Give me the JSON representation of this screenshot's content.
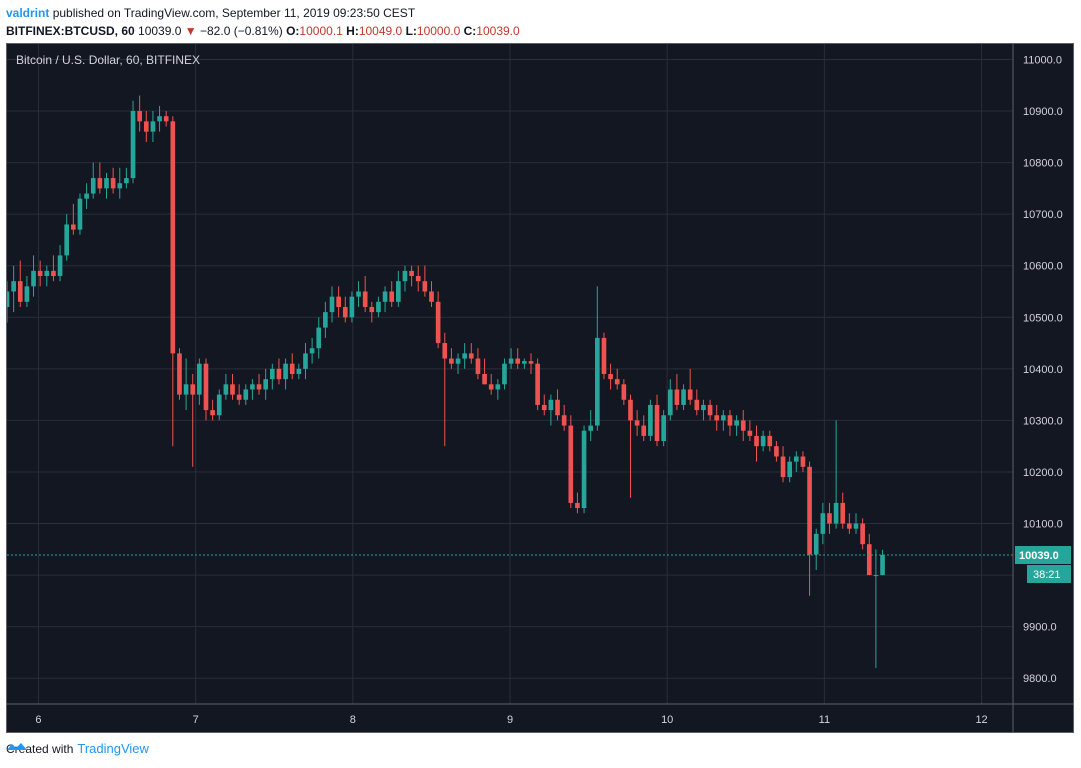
{
  "header": {
    "author": "valdrint",
    "published_text": "published on TradingView.com, September 11, 2019 09:23:50 CEST",
    "symbol": "BITFINEX:BTCUSD, 60",
    "last_price": "10039.0",
    "change_arrow": "▼",
    "change": "−82.0 (−0.81%)",
    "o_label": "O:",
    "o_val": "10000.1",
    "h_label": "H:",
    "h_val": "10049.0",
    "l_label": "L:",
    "l_val": "10000.0",
    "c_label": "C:",
    "c_val": "10039.0"
  },
  "footer": {
    "created_with": "Created with",
    "brand": "TradingView"
  },
  "colors": {
    "up": "#26a69a",
    "down": "#ef5350",
    "bg": "#131722",
    "grid": "#2a2e39",
    "axis_text": "#d1d4dc",
    "price_line": "#26a69a"
  },
  "chart_data": {
    "type": "candlestick",
    "title": "Bitcoin / U.S. Dollar, 60, BITFINEX",
    "ylim": [
      9750,
      11030
    ],
    "xlim": [
      5.8,
      12.2
    ],
    "y_ticks": [
      11000,
      10900,
      10800,
      10700,
      10600,
      10500,
      10400,
      10300,
      10200,
      10100,
      10000,
      9900,
      9800
    ],
    "y_tick_labels": [
      "11000.0",
      "10900.0",
      "10800.0",
      "10700.0",
      "10600.0",
      "10500.0",
      "10400.0",
      "",
      "10200.0",
      "10100.0",
      "",
      "9900.0",
      "9800.0"
    ],
    "x_ticks": [
      6,
      7,
      8,
      9,
      10,
      11,
      12
    ],
    "x_tick_labels": [
      "6",
      "7",
      "8",
      "9",
      "10",
      "11",
      "12"
    ],
    "extra_y_label": {
      "value": 10300,
      "text": "10300.0"
    },
    "current_price": 10039.0,
    "current_price_label": "10039.0",
    "countdown_label": "38:21",
    "candles": [
      {
        "o": 10520,
        "h": 10570,
        "l": 10490,
        "c": 10550
      },
      {
        "o": 10550,
        "h": 10600,
        "l": 10510,
        "c": 10570
      },
      {
        "o": 10570,
        "h": 10610,
        "l": 10520,
        "c": 10530
      },
      {
        "o": 10530,
        "h": 10580,
        "l": 10520,
        "c": 10560
      },
      {
        "o": 10560,
        "h": 10620,
        "l": 10540,
        "c": 10590
      },
      {
        "o": 10590,
        "h": 10610,
        "l": 10560,
        "c": 10580
      },
      {
        "o": 10580,
        "h": 10600,
        "l": 10560,
        "c": 10590
      },
      {
        "o": 10590,
        "h": 10620,
        "l": 10570,
        "c": 10580
      },
      {
        "o": 10580,
        "h": 10640,
        "l": 10570,
        "c": 10620
      },
      {
        "o": 10620,
        "h": 10700,
        "l": 10610,
        "c": 10680
      },
      {
        "o": 10680,
        "h": 10720,
        "l": 10660,
        "c": 10670
      },
      {
        "o": 10670,
        "h": 10740,
        "l": 10660,
        "c": 10730
      },
      {
        "o": 10730,
        "h": 10760,
        "l": 10710,
        "c": 10740
      },
      {
        "o": 10740,
        "h": 10800,
        "l": 10730,
        "c": 10770
      },
      {
        "o": 10770,
        "h": 10800,
        "l": 10740,
        "c": 10750
      },
      {
        "o": 10750,
        "h": 10780,
        "l": 10730,
        "c": 10770
      },
      {
        "o": 10770,
        "h": 10790,
        "l": 10740,
        "c": 10750
      },
      {
        "o": 10750,
        "h": 10790,
        "l": 10730,
        "c": 10760
      },
      {
        "o": 10760,
        "h": 10790,
        "l": 10750,
        "c": 10770
      },
      {
        "o": 10770,
        "h": 10920,
        "l": 10760,
        "c": 10900
      },
      {
        "o": 10900,
        "h": 10930,
        "l": 10860,
        "c": 10880
      },
      {
        "o": 10880,
        "h": 10900,
        "l": 10840,
        "c": 10860
      },
      {
        "o": 10860,
        "h": 10900,
        "l": 10840,
        "c": 10880
      },
      {
        "o": 10880,
        "h": 10910,
        "l": 10860,
        "c": 10890
      },
      {
        "o": 10890,
        "h": 10900,
        "l": 10870,
        "c": 10880
      },
      {
        "o": 10880,
        "h": 10890,
        "l": 10250,
        "c": 10430
      },
      {
        "o": 10430,
        "h": 10440,
        "l": 10340,
        "c": 10350
      },
      {
        "o": 10350,
        "h": 10420,
        "l": 10320,
        "c": 10370
      },
      {
        "o": 10370,
        "h": 10390,
        "l": 10210,
        "c": 10350
      },
      {
        "o": 10350,
        "h": 10420,
        "l": 10330,
        "c": 10410
      },
      {
        "o": 10410,
        "h": 10420,
        "l": 10300,
        "c": 10320
      },
      {
        "o": 10320,
        "h": 10340,
        "l": 10300,
        "c": 10310
      },
      {
        "o": 10310,
        "h": 10360,
        "l": 10300,
        "c": 10350
      },
      {
        "o": 10350,
        "h": 10390,
        "l": 10340,
        "c": 10370
      },
      {
        "o": 10370,
        "h": 10390,
        "l": 10340,
        "c": 10350
      },
      {
        "o": 10350,
        "h": 10370,
        "l": 10330,
        "c": 10340
      },
      {
        "o": 10340,
        "h": 10370,
        "l": 10330,
        "c": 10360
      },
      {
        "o": 10360,
        "h": 10380,
        "l": 10340,
        "c": 10370
      },
      {
        "o": 10370,
        "h": 10390,
        "l": 10350,
        "c": 10360
      },
      {
        "o": 10360,
        "h": 10400,
        "l": 10340,
        "c": 10380
      },
      {
        "o": 10380,
        "h": 10410,
        "l": 10360,
        "c": 10400
      },
      {
        "o": 10400,
        "h": 10420,
        "l": 10370,
        "c": 10380
      },
      {
        "o": 10380,
        "h": 10420,
        "l": 10360,
        "c": 10410
      },
      {
        "o": 10410,
        "h": 10430,
        "l": 10380,
        "c": 10390
      },
      {
        "o": 10390,
        "h": 10410,
        "l": 10380,
        "c": 10400
      },
      {
        "o": 10400,
        "h": 10450,
        "l": 10380,
        "c": 10430
      },
      {
        "o": 10430,
        "h": 10460,
        "l": 10410,
        "c": 10440
      },
      {
        "o": 10440,
        "h": 10500,
        "l": 10420,
        "c": 10480
      },
      {
        "o": 10480,
        "h": 10530,
        "l": 10460,
        "c": 10510
      },
      {
        "o": 10510,
        "h": 10560,
        "l": 10490,
        "c": 10540
      },
      {
        "o": 10540,
        "h": 10560,
        "l": 10500,
        "c": 10520
      },
      {
        "o": 10520,
        "h": 10540,
        "l": 10490,
        "c": 10500
      },
      {
        "o": 10500,
        "h": 10550,
        "l": 10490,
        "c": 10540
      },
      {
        "o": 10540,
        "h": 10570,
        "l": 10520,
        "c": 10550
      },
      {
        "o": 10550,
        "h": 10580,
        "l": 10510,
        "c": 10520
      },
      {
        "o": 10520,
        "h": 10530,
        "l": 10490,
        "c": 10510
      },
      {
        "o": 10510,
        "h": 10540,
        "l": 10500,
        "c": 10530
      },
      {
        "o": 10530,
        "h": 10560,
        "l": 10510,
        "c": 10550
      },
      {
        "o": 10550,
        "h": 10570,
        "l": 10520,
        "c": 10530
      },
      {
        "o": 10530,
        "h": 10590,
        "l": 10520,
        "c": 10570
      },
      {
        "o": 10570,
        "h": 10600,
        "l": 10550,
        "c": 10590
      },
      {
        "o": 10590,
        "h": 10600,
        "l": 10560,
        "c": 10580
      },
      {
        "o": 10580,
        "h": 10600,
        "l": 10550,
        "c": 10570
      },
      {
        "o": 10570,
        "h": 10600,
        "l": 10540,
        "c": 10550
      },
      {
        "o": 10550,
        "h": 10570,
        "l": 10520,
        "c": 10530
      },
      {
        "o": 10530,
        "h": 10550,
        "l": 10440,
        "c": 10450
      },
      {
        "o": 10450,
        "h": 10470,
        "l": 10250,
        "c": 10420
      },
      {
        "o": 10420,
        "h": 10440,
        "l": 10400,
        "c": 10410
      },
      {
        "o": 10410,
        "h": 10430,
        "l": 10390,
        "c": 10420
      },
      {
        "o": 10420,
        "h": 10450,
        "l": 10400,
        "c": 10430
      },
      {
        "o": 10430,
        "h": 10450,
        "l": 10410,
        "c": 10420
      },
      {
        "o": 10420,
        "h": 10440,
        "l": 10380,
        "c": 10390
      },
      {
        "o": 10390,
        "h": 10420,
        "l": 10370,
        "c": 10370
      },
      {
        "o": 10370,
        "h": 10390,
        "l": 10350,
        "c": 10360
      },
      {
        "o": 10360,
        "h": 10380,
        "l": 10340,
        "c": 10370
      },
      {
        "o": 10370,
        "h": 10420,
        "l": 10360,
        "c": 10410
      },
      {
        "o": 10410,
        "h": 10440,
        "l": 10400,
        "c": 10420
      },
      {
        "o": 10420,
        "h": 10440,
        "l": 10400,
        "c": 10410
      },
      {
        "o": 10410,
        "h": 10420,
        "l": 10400,
        "c": 10415
      },
      {
        "o": 10415,
        "h": 10430,
        "l": 10390,
        "c": 10410
      },
      {
        "o": 10410,
        "h": 10420,
        "l": 10320,
        "c": 10330
      },
      {
        "o": 10330,
        "h": 10350,
        "l": 10310,
        "c": 10320
      },
      {
        "o": 10320,
        "h": 10350,
        "l": 10290,
        "c": 10340
      },
      {
        "o": 10340,
        "h": 10360,
        "l": 10300,
        "c": 10310
      },
      {
        "o": 10310,
        "h": 10330,
        "l": 10280,
        "c": 10290
      },
      {
        "o": 10290,
        "h": 10310,
        "l": 10130,
        "c": 10140
      },
      {
        "o": 10140,
        "h": 10160,
        "l": 10120,
        "c": 10130
      },
      {
        "o": 10130,
        "h": 10290,
        "l": 10120,
        "c": 10280
      },
      {
        "o": 10280,
        "h": 10320,
        "l": 10260,
        "c": 10290
      },
      {
        "o": 10290,
        "h": 10560,
        "l": 10280,
        "c": 10460
      },
      {
        "o": 10460,
        "h": 10470,
        "l": 10380,
        "c": 10390
      },
      {
        "o": 10390,
        "h": 10410,
        "l": 10360,
        "c": 10380
      },
      {
        "o": 10380,
        "h": 10400,
        "l": 10360,
        "c": 10370
      },
      {
        "o": 10370,
        "h": 10380,
        "l": 10330,
        "c": 10340
      },
      {
        "o": 10340,
        "h": 10350,
        "l": 10150,
        "c": 10300
      },
      {
        "o": 10300,
        "h": 10320,
        "l": 10270,
        "c": 10290
      },
      {
        "o": 10290,
        "h": 10310,
        "l": 10260,
        "c": 10270
      },
      {
        "o": 10270,
        "h": 10340,
        "l": 10260,
        "c": 10330
      },
      {
        "o": 10330,
        "h": 10350,
        "l": 10250,
        "c": 10260
      },
      {
        "o": 10260,
        "h": 10320,
        "l": 10250,
        "c": 10310
      },
      {
        "o": 10310,
        "h": 10380,
        "l": 10300,
        "c": 10360
      },
      {
        "o": 10360,
        "h": 10390,
        "l": 10320,
        "c": 10330
      },
      {
        "o": 10330,
        "h": 10370,
        "l": 10320,
        "c": 10360
      },
      {
        "o": 10360,
        "h": 10400,
        "l": 10330,
        "c": 10340
      },
      {
        "o": 10340,
        "h": 10360,
        "l": 10310,
        "c": 10320
      },
      {
        "o": 10320,
        "h": 10340,
        "l": 10300,
        "c": 10330
      },
      {
        "o": 10330,
        "h": 10340,
        "l": 10300,
        "c": 10310
      },
      {
        "o": 10310,
        "h": 10330,
        "l": 10280,
        "c": 10300
      },
      {
        "o": 10300,
        "h": 10320,
        "l": 10280,
        "c": 10310
      },
      {
        "o": 10310,
        "h": 10320,
        "l": 10270,
        "c": 10290
      },
      {
        "o": 10290,
        "h": 10310,
        "l": 10270,
        "c": 10300
      },
      {
        "o": 10300,
        "h": 10320,
        "l": 10260,
        "c": 10280
      },
      {
        "o": 10280,
        "h": 10300,
        "l": 10260,
        "c": 10270
      },
      {
        "o": 10270,
        "h": 10290,
        "l": 10220,
        "c": 10250
      },
      {
        "o": 10250,
        "h": 10280,
        "l": 10240,
        "c": 10270
      },
      {
        "o": 10270,
        "h": 10280,
        "l": 10240,
        "c": 10250
      },
      {
        "o": 10250,
        "h": 10260,
        "l": 10220,
        "c": 10230
      },
      {
        "o": 10230,
        "h": 10250,
        "l": 10180,
        "c": 10190
      },
      {
        "o": 10190,
        "h": 10230,
        "l": 10180,
        "c": 10220
      },
      {
        "o": 10220,
        "h": 10240,
        "l": 10200,
        "c": 10230
      },
      {
        "o": 10230,
        "h": 10240,
        "l": 10200,
        "c": 10210
      },
      {
        "o": 10210,
        "h": 10220,
        "l": 9960,
        "c": 10040
      },
      {
        "o": 10040,
        "h": 10090,
        "l": 10010,
        "c": 10080
      },
      {
        "o": 10080,
        "h": 10140,
        "l": 10060,
        "c": 10120
      },
      {
        "o": 10120,
        "h": 10140,
        "l": 10080,
        "c": 10100
      },
      {
        "o": 10100,
        "h": 10300,
        "l": 10090,
        "c": 10140
      },
      {
        "o": 10140,
        "h": 10160,
        "l": 10090,
        "c": 10100
      },
      {
        "o": 10100,
        "h": 10120,
        "l": 10080,
        "c": 10090
      },
      {
        "o": 10090,
        "h": 10120,
        "l": 10080,
        "c": 10100
      },
      {
        "o": 10100,
        "h": 10110,
        "l": 10050,
        "c": 10060
      },
      {
        "o": 10060,
        "h": 10080,
        "l": 10000,
        "c": 10000
      },
      {
        "o": 10000,
        "h": 10050,
        "l": 9820,
        "c": 10000
      },
      {
        "o": 10000.1,
        "h": 10049,
        "l": 10000,
        "c": 10039
      }
    ],
    "x_start": 5.8,
    "x_end": 11.37,
    "grid": true
  }
}
